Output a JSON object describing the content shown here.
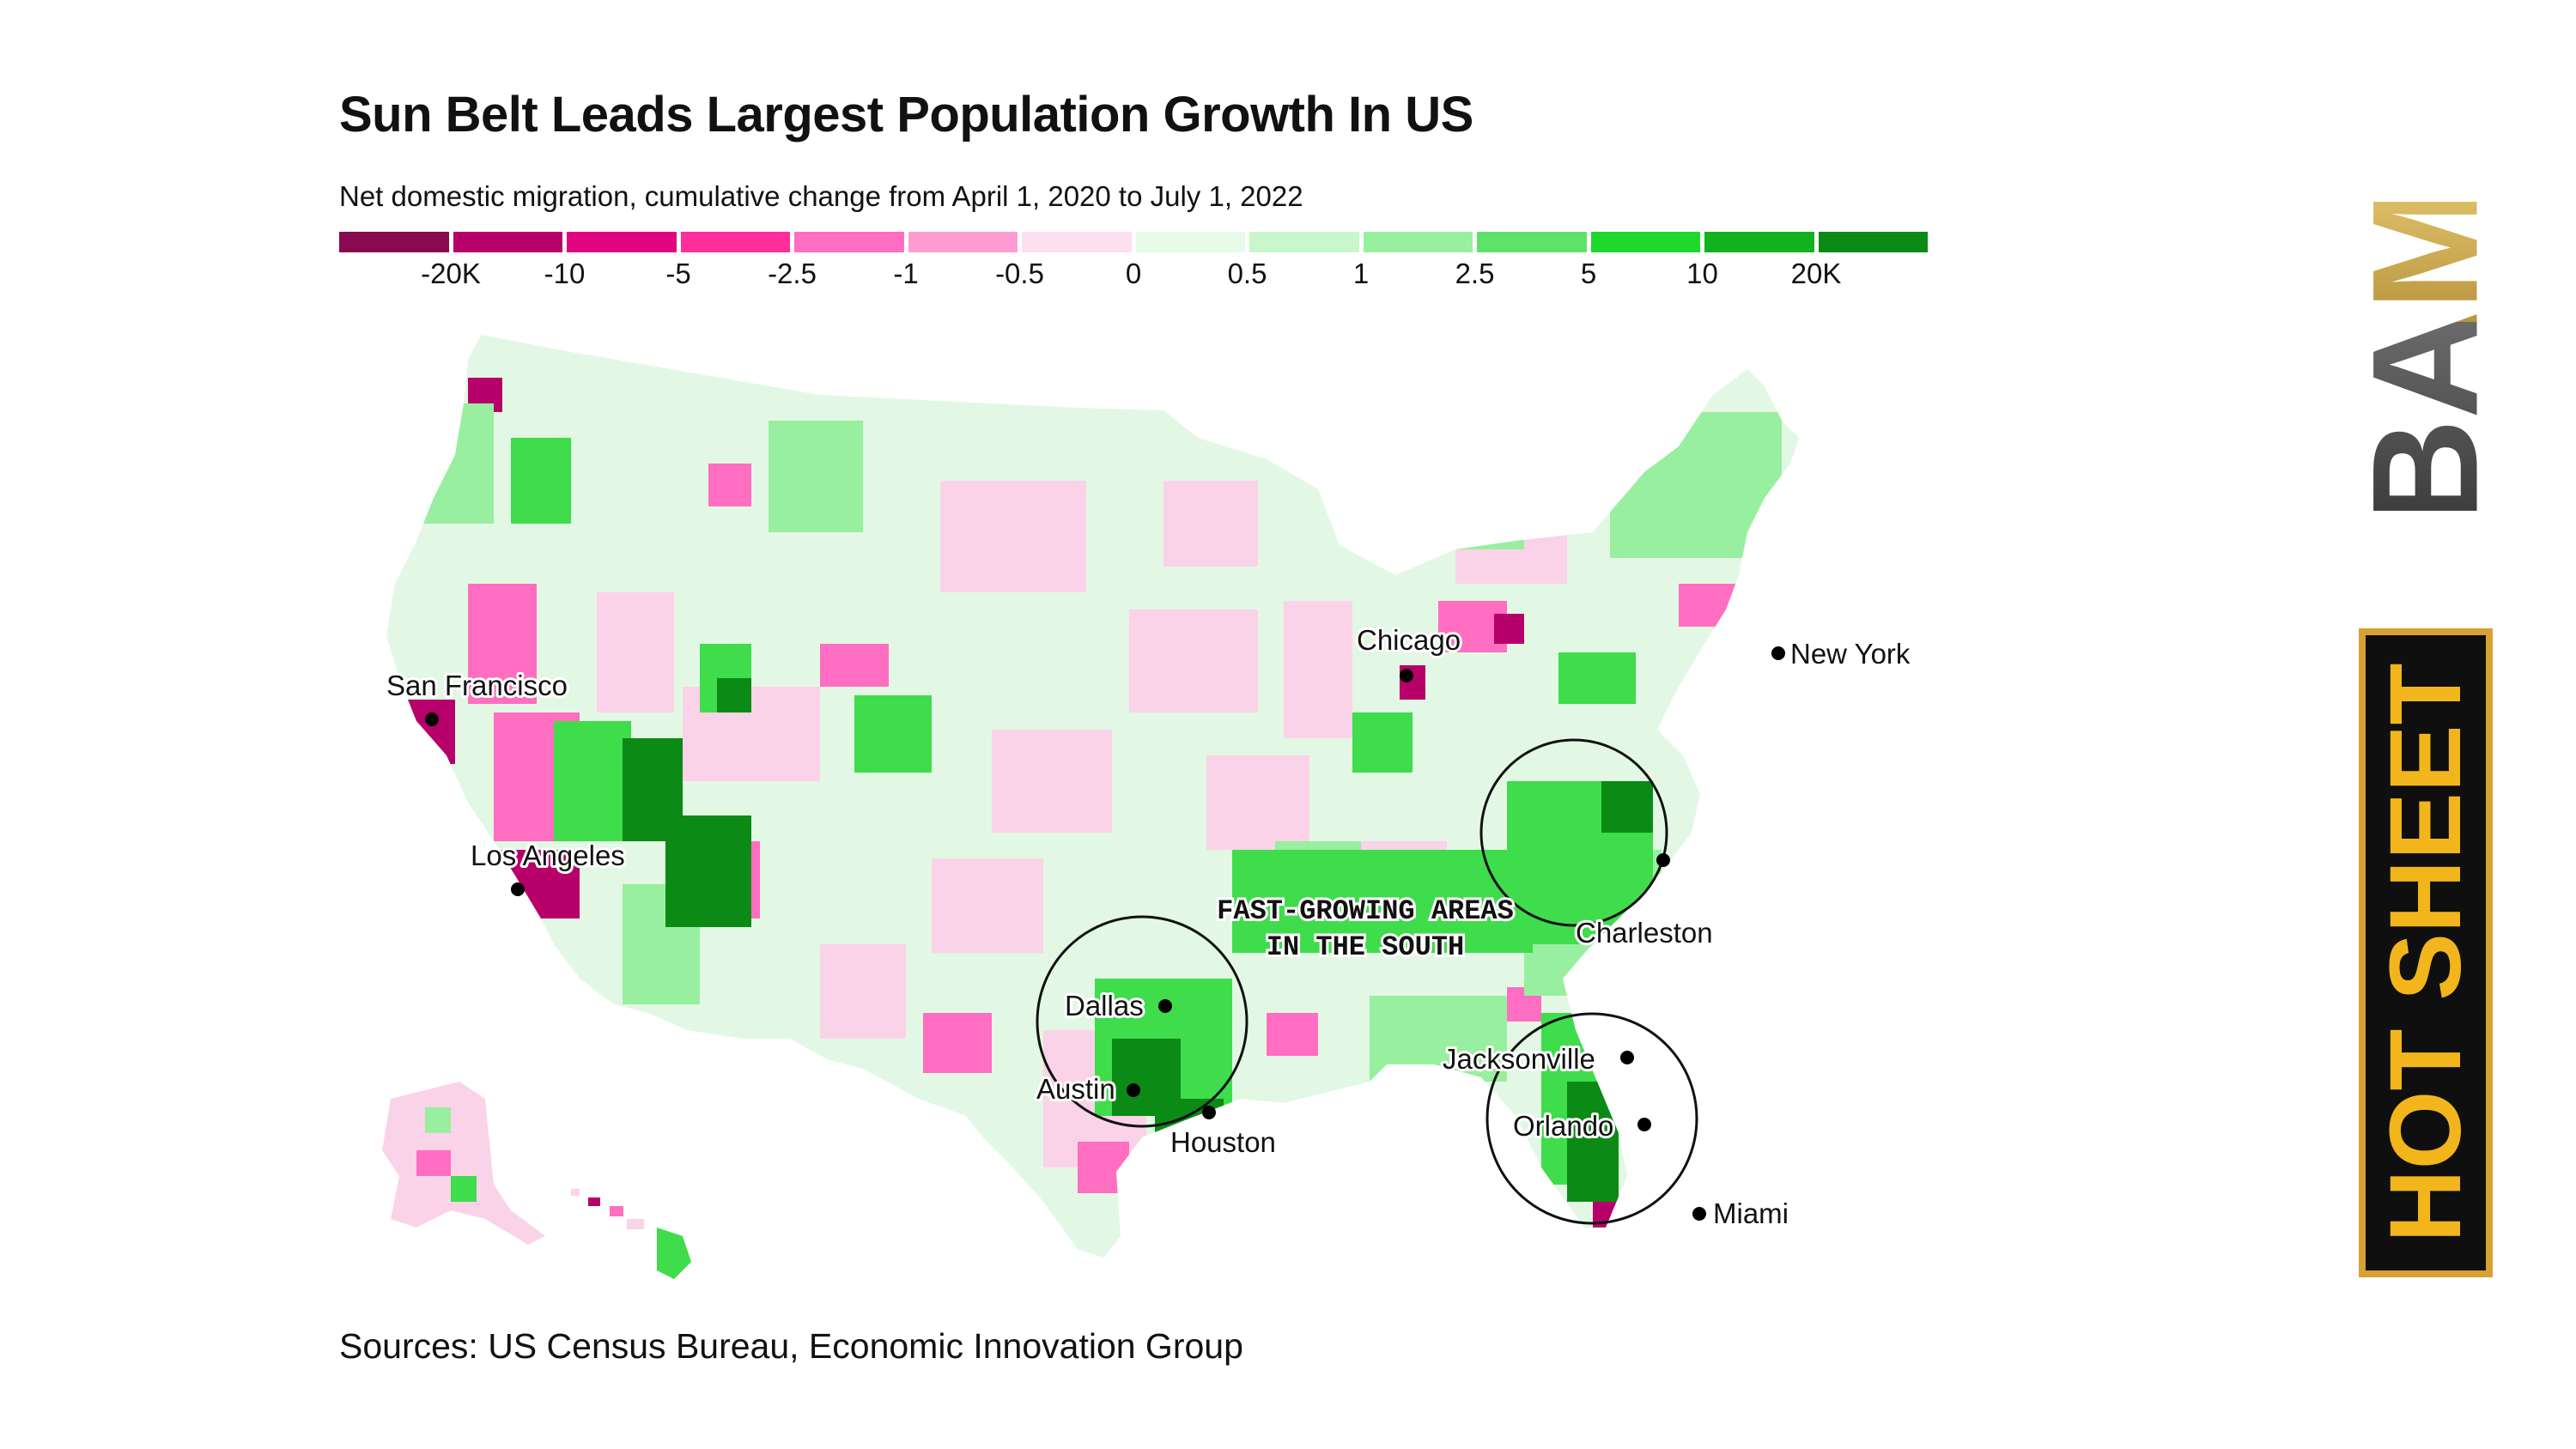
{
  "header": {
    "title": "Sun Belt Leads Largest Population Growth In US",
    "subtitle": "Net domestic migration, cumulative change from April 1, 2020 to July 1, 2022"
  },
  "legend": {
    "colors": [
      "#8a0a52",
      "#b8006b",
      "#e0047f",
      "#ff2e9a",
      "#ff6ec0",
      "#ff9dd3",
      "#fde0ef",
      "#e6fbe8",
      "#c8f7cc",
      "#98ef9f",
      "#5fe26a",
      "#1fd82c",
      "#12b21f",
      "#0b8a16"
    ],
    "labels": [
      "-20K",
      "-10",
      "-5",
      "-2.5",
      "-1",
      "-0.5",
      "0",
      "0.5",
      "1",
      "2.5",
      "5",
      "10",
      "20K"
    ]
  },
  "map": {
    "annotation_line1": "FAST-GROWING AREAS",
    "annotation_line2": "IN THE SOUTH",
    "cities": {
      "san_francisco": "San Francisco",
      "los_angeles": "Los Angeles",
      "chicago": "Chicago",
      "new_york": "New York",
      "charleston": "Charleston",
      "dallas": "Dallas",
      "austin": "Austin",
      "houston": "Houston",
      "jacksonville": "Jacksonville",
      "orlando": "Orlando",
      "miami": "Miami"
    },
    "colors": {
      "base": "#e2f8e4",
      "neg_light": "#fbd3e8",
      "neg_mid": "#ff6ec0",
      "neg_dark": "#b8006b",
      "pos_light": "#98ef9f",
      "pos_mid": "#3fdc4b",
      "pos_dark": "#0b8a16"
    }
  },
  "footer": {
    "source": "Sources: US Census Bureau, Economic Innovation Group"
  },
  "branding": {
    "bam": "BAM",
    "hot_sheet": "HOT SHEET"
  }
}
